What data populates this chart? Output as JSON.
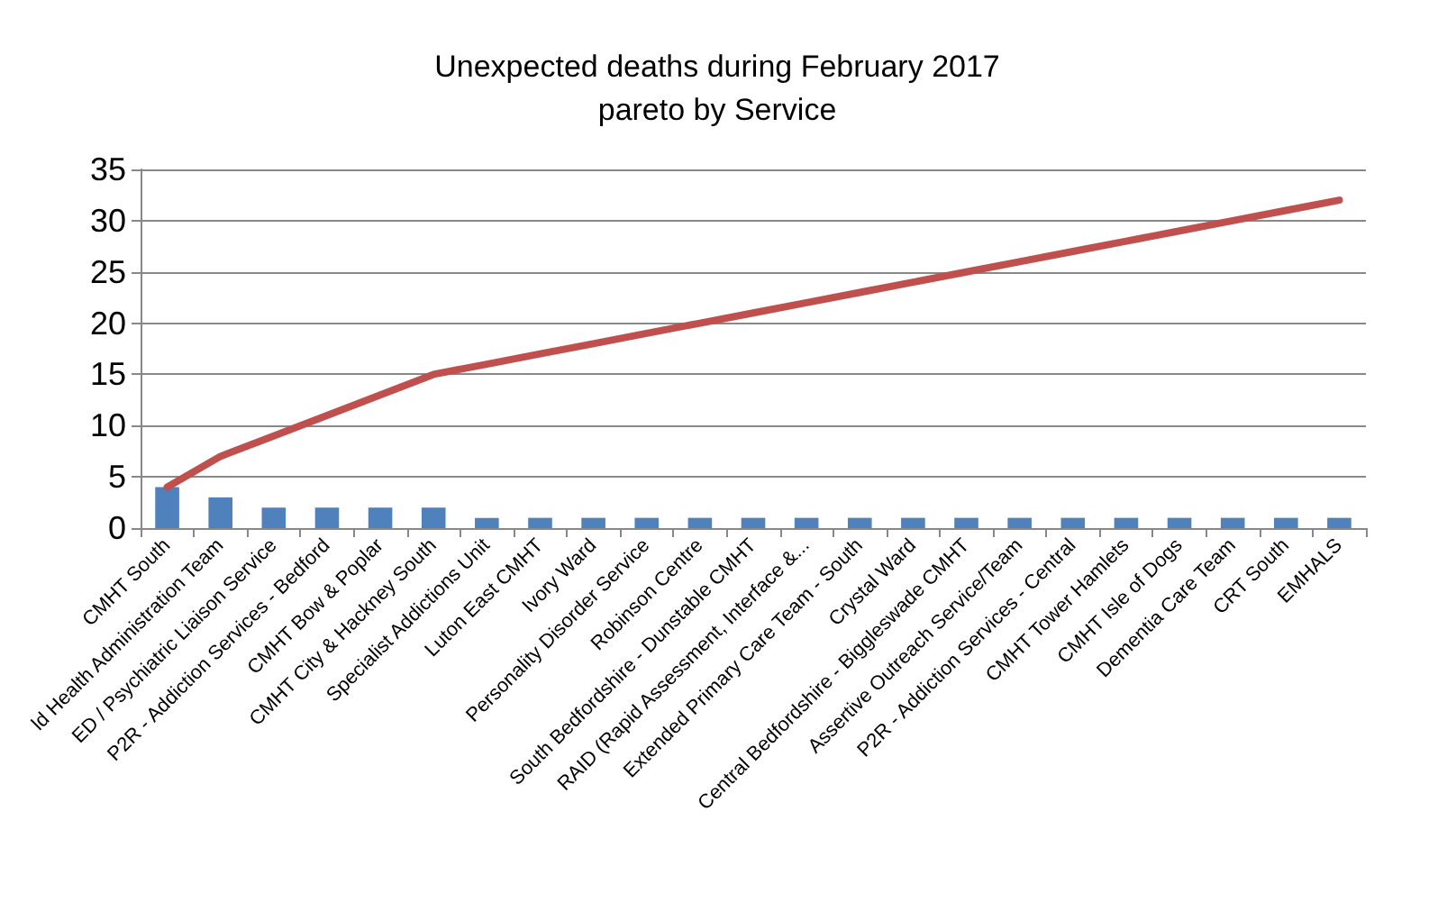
{
  "chart_data": {
    "type": "bar",
    "title": "Unexpected deaths during February 2017\npareto by Service",
    "categories": [
      "CMHT South",
      "ld Health Administration Team",
      "ED / Psychiatric Liaison Service",
      "P2R - Addiction Services - Bedford",
      "CMHT Bow & Poplar",
      "CMHT City & Hackney South",
      "Specialist Addictions Unit",
      "Luton East CMHT",
      "Ivory Ward",
      "Personality Disorder Service",
      "Robinson Centre",
      "South Bedfordshire - Dunstable CMHT",
      "RAID (Rapid Assessment, Interface &...",
      "Extended Primary Care Team - South",
      "Crystal Ward",
      "Central Bedfordshire - Biggleswade CMHT",
      "Assertive Outreach Service/Team",
      "P2R - Addiction Services - Central",
      "CMHT Tower Hamlets",
      "CMHT Isle of Dogs",
      "Dementia Care Team",
      "CRT South",
      "EMHALS"
    ],
    "series": [
      {
        "color": "#4f81bd",
        "values": [
          4,
          3,
          2,
          2,
          2,
          2,
          1,
          1,
          1,
          1,
          1,
          1,
          1,
          1,
          1,
          1,
          1,
          1,
          1,
          1,
          1,
          1,
          1
        ]
      },
      {
        "type": "line",
        "color": "#c0504d",
        "values": [
          4,
          7,
          9,
          11,
          13,
          15,
          16,
          17,
          18,
          19,
          20,
          21,
          22,
          23,
          24,
          25,
          26,
          27,
          28,
          29,
          30,
          31,
          32
        ]
      }
    ],
    "ylim": [
      0,
      35
    ],
    "yticks": [
      0,
      5,
      10,
      15,
      20,
      25,
      30,
      35
    ],
    "grid": "y",
    "marker": "none",
    "line_style": "solid"
  }
}
